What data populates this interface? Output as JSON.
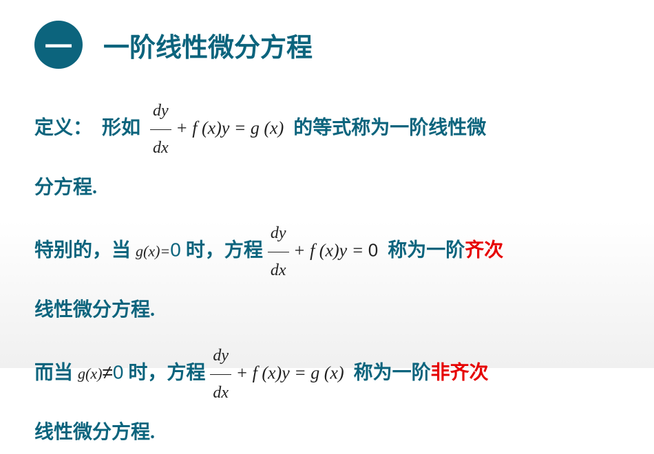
{
  "colors": {
    "primary": "#0c647d",
    "formula": "#222222",
    "highlight": "#e60000",
    "background_top": "#ffffff",
    "background_bottom": "#f0f0f0"
  },
  "typography": {
    "title_fontsize": 38,
    "body_fontsize": 28,
    "formula_fontsize": 26,
    "formula_small_fontsize": 22,
    "body_font": "SimSun",
    "title_font": "SimHei",
    "formula_font": "Times New Roman"
  },
  "header": {
    "badge": "一",
    "title": "一阶线性微分方程"
  },
  "para1": {
    "t1": "定义：",
    "t2": "形如",
    "formula_num": "dy",
    "formula_den": "dx",
    "formula_rest": "+ f (x)y = g (x)",
    "t3": "的等式称为一阶线性微",
    "t4": "分方程."
  },
  "para2": {
    "t1": "特别的，当",
    "cond_fx": "g(x)=",
    "cond_zero": "0",
    "t2": "时，方程",
    "formula_num": "dy",
    "formula_den": "dx",
    "formula_rest": "+ f (x)y = ",
    "formula_zero": "0",
    "t3": "称为一阶",
    "highlight": "齐次",
    "t4": "线性微分方程."
  },
  "para3": {
    "t1": "而当",
    "cond_fx": "g(x)",
    "cond_ne": "≠",
    "cond_zero": "0",
    "t2": "时，方程",
    "formula_num": "dy",
    "formula_den": "dx",
    "formula_rest": "+ f (x)y = g (x)",
    "t3": "称为一阶",
    "highlight": "非齐次",
    "t4": "线性微分方程."
  }
}
